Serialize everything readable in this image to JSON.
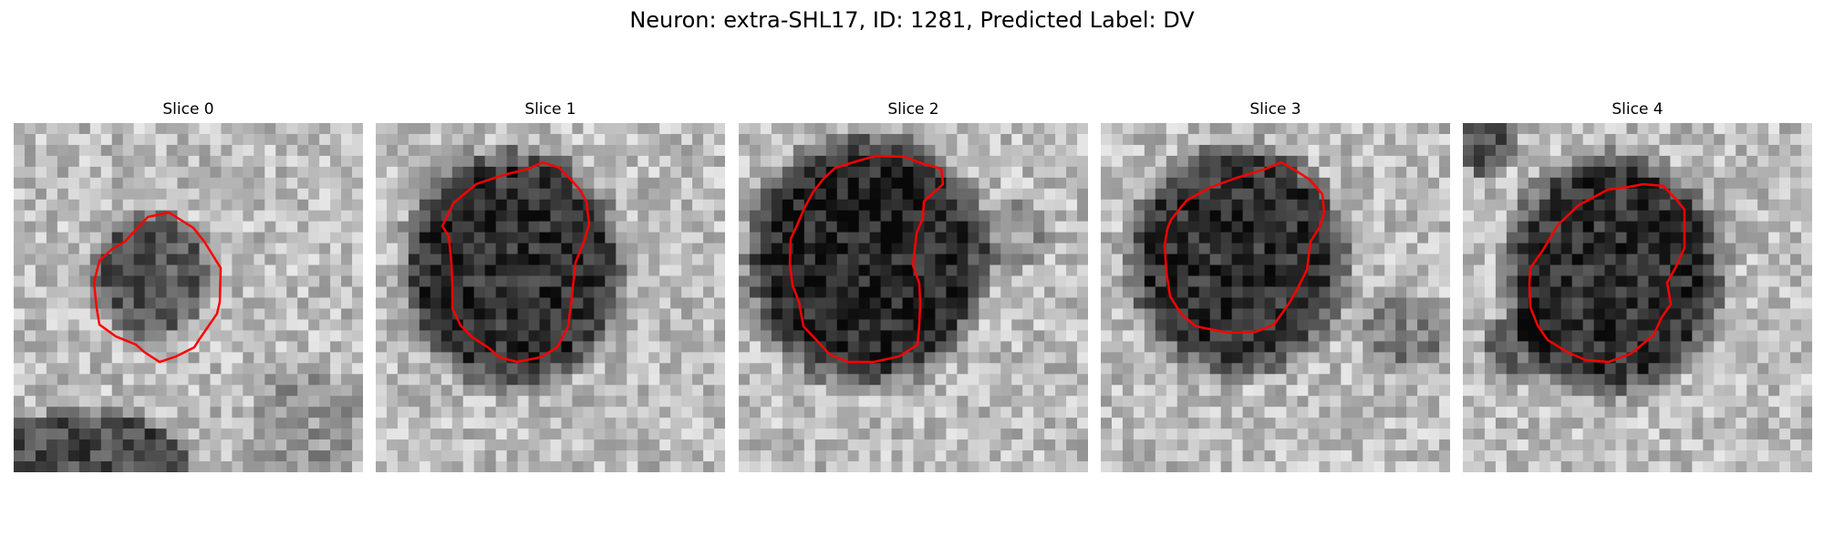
{
  "figure": {
    "title": "Neuron: extra-SHL17, ID: 1281, Predicted Label: DV",
    "contour_color": "#ff0000"
  },
  "slices": [
    {
      "label": "Slice 0"
    },
    {
      "label": "Slice 1"
    },
    {
      "label": "Slice 2"
    },
    {
      "label": "Slice 3"
    },
    {
      "label": "Slice 4"
    }
  ]
}
